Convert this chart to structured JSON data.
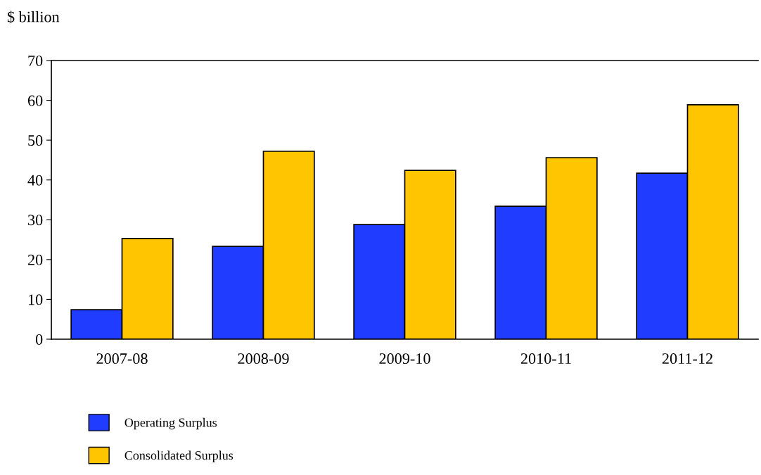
{
  "chart_data": {
    "type": "bar",
    "ylabel": "$ billion",
    "categories": [
      "2007-08",
      "2008-09",
      "2009-10",
      "2010-11",
      "2011-12"
    ],
    "series": [
      {
        "name": "Operating Surplus",
        "color": "#1f3cff",
        "values": [
          7.4,
          23.3,
          28.8,
          33.4,
          41.7
        ]
      },
      {
        "name": "Consolidated Surplus",
        "color": "#ffc600",
        "values": [
          25.3,
          47.2,
          42.4,
          45.6,
          58.9
        ]
      }
    ],
    "ylim": [
      0,
      70
    ],
    "yticks": [
      0,
      10,
      20,
      30,
      40,
      50,
      60,
      70
    ],
    "grid": false,
    "legend": "bottom"
  }
}
